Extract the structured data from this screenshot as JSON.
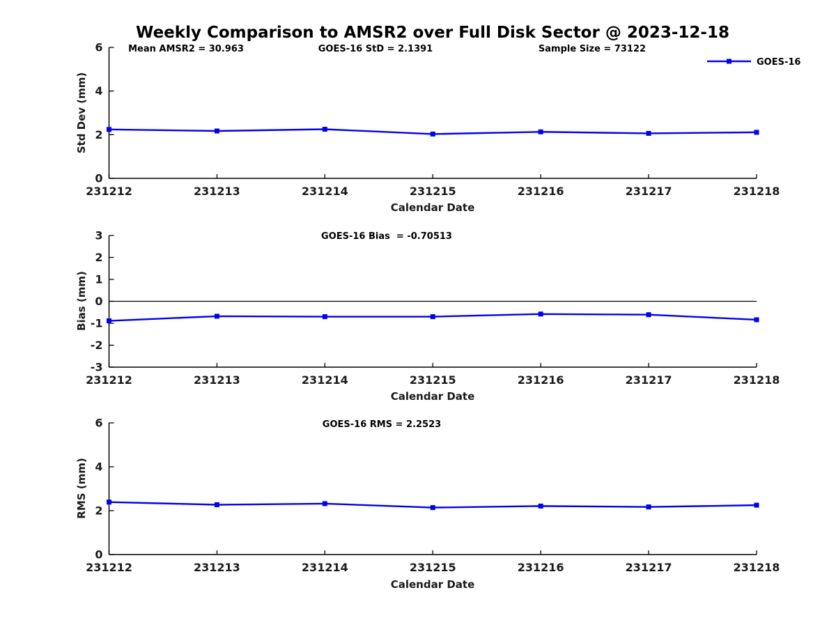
{
  "title": "Weekly Comparison to AMSR2 over Full Disk Sector @ 2023-12-18",
  "colors": {
    "line": "#0000EE",
    "axis": "#000000",
    "text": "#000000"
  },
  "legend": {
    "label": "GOES-16"
  },
  "chart_data": [
    {
      "type": "line",
      "name": "std-dev",
      "annotations": [
        "Mean AMSR2 = 30.963",
        "GOES-16 StD = 2.1391",
        "Sample Size = 73122"
      ],
      "categories": [
        "231212",
        "231213",
        "231214",
        "231215",
        "231216",
        "231217",
        "231218"
      ],
      "series": [
        {
          "name": "GOES-16",
          "values": [
            2.24,
            2.17,
            2.25,
            2.03,
            2.13,
            2.06,
            2.11
          ]
        }
      ],
      "xlabel": "Calendar Date",
      "ylabel": "Std Dev (mm)",
      "ylim": [
        0,
        6
      ],
      "yticks": [
        0,
        2,
        4,
        6
      ],
      "zero_line": false,
      "grid": false,
      "legend_position": "top-right-outside"
    },
    {
      "type": "line",
      "name": "bias",
      "annotations": [
        "GOES-16 Bias  = -0.70513"
      ],
      "categories": [
        "231212",
        "231213",
        "231214",
        "231215",
        "231216",
        "231217",
        "231218"
      ],
      "series": [
        {
          "name": "GOES-16",
          "values": [
            -0.89,
            -0.68,
            -0.7,
            -0.7,
            -0.58,
            -0.61,
            -0.84
          ]
        }
      ],
      "xlabel": "Calendar Date",
      "ylabel": "Bias (mm)",
      "ylim": [
        -3,
        3
      ],
      "yticks": [
        -3,
        -2,
        -1,
        0,
        1,
        2,
        3
      ],
      "zero_line": true,
      "grid": false
    },
    {
      "type": "line",
      "name": "rms",
      "annotations": [
        "GOES-16 RMS = 2.2523"
      ],
      "categories": [
        "231212",
        "231213",
        "231214",
        "231215",
        "231216",
        "231217",
        "231218"
      ],
      "series": [
        {
          "name": "GOES-16",
          "values": [
            2.39,
            2.27,
            2.32,
            2.14,
            2.21,
            2.17,
            2.25
          ]
        }
      ],
      "xlabel": "Calendar Date",
      "ylabel": "RMS (mm)",
      "ylim": [
        0,
        6
      ],
      "yticks": [
        0,
        2,
        4,
        6
      ],
      "zero_line": false,
      "grid": false
    }
  ]
}
